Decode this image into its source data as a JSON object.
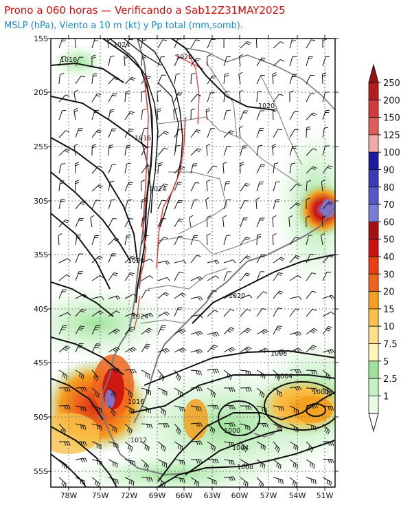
{
  "header": {
    "title": "Prono a 060 horas — Verificando a Sab12Z31MAY2025",
    "subtitle": "MSLP (hPa), Viento a 10 m (kt) y Pp total (mm,somb)."
  },
  "map": {
    "lat_labels": [
      "15S",
      "20S",
      "25S",
      "30S",
      "35S",
      "40S",
      "45S",
      "50S",
      "55S"
    ],
    "lon_labels": [
      "78W",
      "75W",
      "72W",
      "69W",
      "66W",
      "63W",
      "60W",
      "57W",
      "54W",
      "51W"
    ],
    "isobars": [
      {
        "label": "1024",
        "type": "mslp"
      },
      {
        "label": "1016",
        "type": "mslp"
      },
      {
        "label": "1020",
        "type": "mslp"
      },
      {
        "label": "1016",
        "type": "mslp"
      },
      {
        "label": "1024",
        "type": "mslp"
      },
      {
        "label": "1020",
        "type": "mslp"
      },
      {
        "label": "1020",
        "type": "mslp"
      },
      {
        "label": "1020",
        "type": "mslp"
      },
      {
        "label": "1024",
        "type": "mslp"
      },
      {
        "label": "1008",
        "type": "mslp"
      },
      {
        "label": "1004",
        "type": "mslp"
      },
      {
        "label": "1000",
        "type": "mslp"
      },
      {
        "label": "1016",
        "type": "mslp"
      },
      {
        "label": "1000",
        "type": "mslp"
      },
      {
        "label": "1004",
        "type": "mslp"
      },
      {
        "label": "1012",
        "type": "mslp"
      },
      {
        "label": "1008",
        "type": "mslp"
      }
    ]
  },
  "colorbar": {
    "labels": [
      "250",
      "200",
      "150",
      "125",
      "100",
      "90",
      "80",
      "70",
      "60",
      "50",
      "40",
      "30",
      "20",
      "15",
      "10",
      "7.5",
      "5",
      "2.5",
      "1"
    ],
    "colors": [
      "#b71c1c",
      "#d23b3b",
      "#e25a5a",
      "#f4a9a9",
      "#1a1aa6",
      "#3a3ab8",
      "#5757c9",
      "#7b7bd8",
      "#a50f0f",
      "#cc1010",
      "#e83e10",
      "#f0651c",
      "#f5a01e",
      "#fbc14a",
      "#fde08a",
      "#fff6b8",
      "#9fe39b",
      "#c7f2c3",
      "#e9fbe7"
    ],
    "top_arrow_color": "#9b0f0f"
  }
}
